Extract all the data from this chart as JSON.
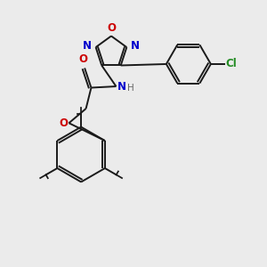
{
  "bg_color": "#ebebeb",
  "bond_color": "#1a1a1a",
  "lw": 1.4,
  "atom_colors": {
    "O": "#cc0000",
    "N": "#0000cc",
    "Cl": "#228B22",
    "C": "#1a1a1a",
    "H": "#666666"
  },
  "fontsize": 8.5
}
